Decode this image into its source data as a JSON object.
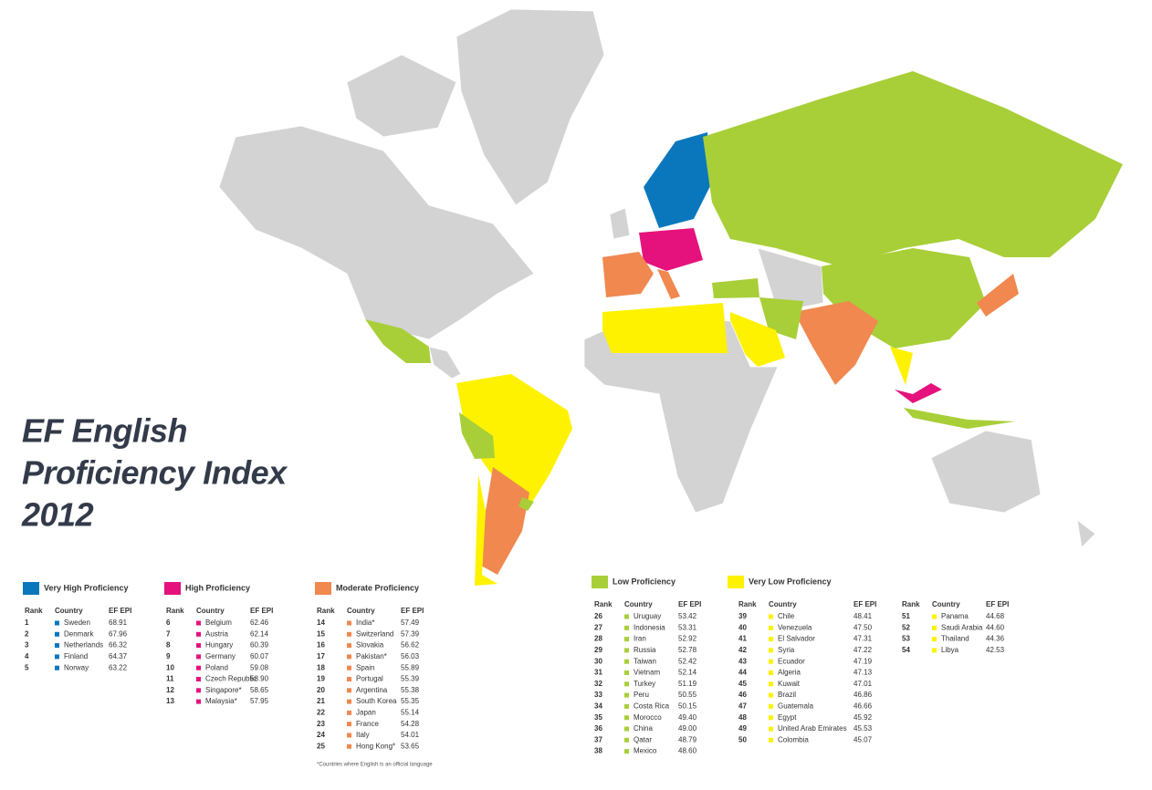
{
  "title_lines": [
    "EF English",
    "Proficiency Index",
    "2012"
  ],
  "header": [
    "Rank",
    "Country",
    "EF EPI"
  ],
  "groups": [
    {
      "name": "Very High Proficiency",
      "color": "#0a77bd",
      "tables": [
        [
          [
            1,
            "Sweden",
            "68.91"
          ],
          [
            2,
            "Denmark",
            "67.96"
          ],
          [
            3,
            "Netherlands",
            "66.32"
          ],
          [
            4,
            "Finland",
            "64.37"
          ],
          [
            5,
            "Norway",
            "63.22"
          ]
        ]
      ]
    },
    {
      "name": "High Proficiency",
      "color": "#e5127d",
      "tables": [
        [
          [
            6,
            "Belgium",
            "62.46"
          ],
          [
            7,
            "Austria",
            "62.14"
          ],
          [
            8,
            "Hungary",
            "60.39"
          ],
          [
            9,
            "Germany",
            "60.07"
          ],
          [
            10,
            "Poland",
            "59.08"
          ],
          [
            11,
            "Czech Republic",
            "58.90"
          ],
          [
            12,
            "Singapore*",
            "58.65"
          ],
          [
            13,
            "Malaysia*",
            "57.95"
          ]
        ]
      ]
    },
    {
      "name": "Moderate Proficiency",
      "color": "#f0884f",
      "tables": [
        [
          [
            14,
            "India*",
            "57.49"
          ],
          [
            15,
            "Switzerland",
            "57.39"
          ],
          [
            16,
            "Slovakia",
            "56.62"
          ],
          [
            17,
            "Pakistan*",
            "56.03"
          ],
          [
            18,
            "Spain",
            "55.89"
          ],
          [
            19,
            "Portugal",
            "55.39"
          ],
          [
            20,
            "Argentina",
            "55.38"
          ],
          [
            21,
            "South Korea",
            "55.35"
          ],
          [
            22,
            "Japan",
            "55.14"
          ],
          [
            23,
            "France",
            "54.28"
          ],
          [
            24,
            "Italy",
            "54.01"
          ],
          [
            25,
            "Hong Kong*",
            "53.65"
          ]
        ]
      ]
    },
    {
      "name": "Low Proficiency",
      "color": "#a8cf38",
      "tables": [
        [
          [
            26,
            "Uruguay",
            "53.42"
          ],
          [
            27,
            "Indonesia",
            "53.31"
          ],
          [
            28,
            "Iran",
            "52.92"
          ],
          [
            29,
            "Russia",
            "52.78"
          ],
          [
            30,
            "Taiwan",
            "52.42"
          ],
          [
            31,
            "Vietnam",
            "52.14"
          ],
          [
            32,
            "Turkey",
            "51.19"
          ],
          [
            33,
            "Peru",
            "50.55"
          ],
          [
            34,
            "Costa Rica",
            "50.15"
          ],
          [
            35,
            "Morocco",
            "49.40"
          ],
          [
            36,
            "China",
            "49.00"
          ],
          [
            37,
            "Qatar",
            "48.79"
          ],
          [
            38,
            "Mexico",
            "48.60"
          ]
        ]
      ]
    },
    {
      "name": "Very Low Proficiency",
      "color": "#fef200",
      "tables": [
        [
          [
            39,
            "Chile",
            "48.41"
          ],
          [
            40,
            "Venezuela",
            "47.50"
          ],
          [
            41,
            "El Salvador",
            "47.31"
          ],
          [
            42,
            "Syria",
            "47.22"
          ],
          [
            43,
            "Ecuador",
            "47.19"
          ],
          [
            44,
            "Algeria",
            "47.13"
          ],
          [
            45,
            "Kuwait",
            "47.01"
          ],
          [
            46,
            "Brazil",
            "46.86"
          ],
          [
            47,
            "Guatemala",
            "46.66"
          ],
          [
            48,
            "Egypt",
            "45.92"
          ],
          [
            49,
            "United Arab Emirates",
            "45.53"
          ],
          [
            50,
            "Colombia",
            "45.07"
          ]
        ],
        [
          [
            51,
            "Panama",
            "44.68"
          ],
          [
            52,
            "Saudi Arabia",
            "44.60"
          ],
          [
            53,
            "Thailand",
            "44.36"
          ],
          [
            54,
            "Libya",
            "42.53"
          ]
        ]
      ]
    }
  ],
  "footnote": "*Countries where English is an official language"
}
